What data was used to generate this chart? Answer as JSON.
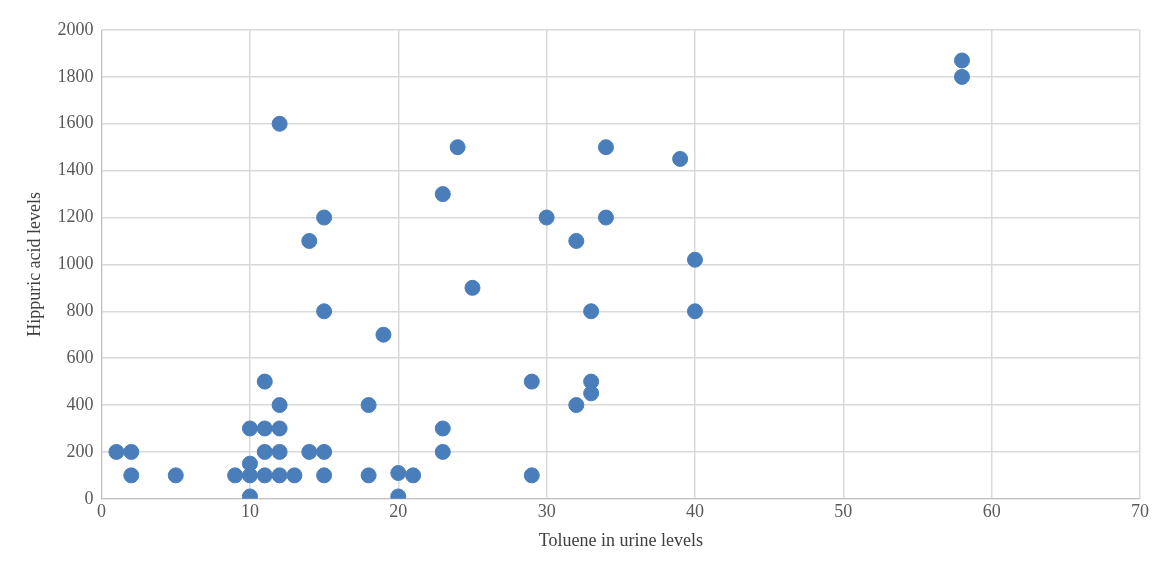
{
  "chart_data": {
    "type": "scatter",
    "xlabel": "Toluene in urine levels",
    "ylabel": "Hippuric acid levels",
    "x": [
      1,
      2,
      2,
      5,
      9,
      10,
      10,
      10,
      10,
      11,
      11,
      11,
      11,
      12,
      12,
      12,
      12,
      13,
      14,
      15,
      15,
      18,
      18,
      20,
      20,
      21,
      23,
      23,
      29,
      29,
      32,
      33,
      33,
      15,
      19,
      25,
      33,
      40,
      40,
      32,
      14,
      15,
      30,
      34,
      23,
      39,
      24,
      34,
      12,
      58,
      58
    ],
    "values": [
      200,
      200,
      100,
      100,
      100,
      100,
      150,
      10,
      300,
      300,
      200,
      100,
      500,
      400,
      300,
      200,
      100,
      100,
      200,
      200,
      100,
      100,
      400,
      110,
      10,
      100,
      200,
      300,
      100,
      500,
      400,
      450,
      500,
      800,
      700,
      900,
      800,
      800,
      1020,
      1100,
      1100,
      1200,
      1200,
      1200,
      1300,
      1450,
      1500,
      1500,
      1600,
      1800,
      1870
    ],
    "color": "#4a7ebb",
    "marker": "circle",
    "xlim": [
      0,
      70
    ],
    "xticks": [
      0,
      10,
      20,
      30,
      40,
      50,
      60,
      70
    ],
    "ylim": [
      0,
      2000
    ],
    "yticks": [
      0,
      200,
      400,
      600,
      800,
      1000,
      1200,
      1400,
      1600,
      1800,
      2000
    ],
    "grid": true,
    "legend": false
  }
}
